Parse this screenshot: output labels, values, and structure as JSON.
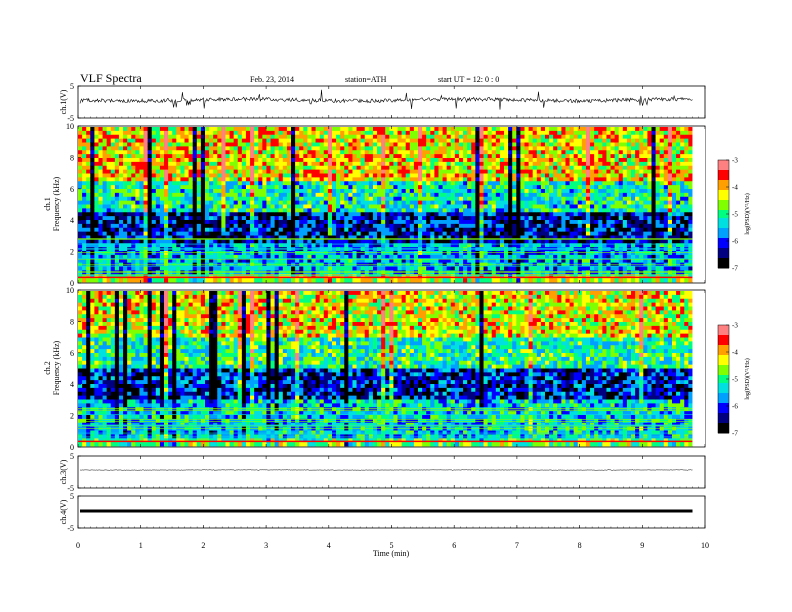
{
  "header": {
    "title": "VLF  Spectra",
    "date": "Feb. 23, 2014",
    "station": "station=ATH",
    "start": "start  UT  =    12: 0   : 0"
  },
  "colors": {
    "spectrum": [
      "#000000",
      "#000080",
      "#0000ff",
      "#00a0ff",
      "#00e0e0",
      "#00ff80",
      "#80ff00",
      "#ffff00",
      "#ffa000",
      "#ff0000",
      "#ff8080",
      "#ffffff"
    ]
  },
  "chart_data": [
    {
      "type": "line",
      "panel": "ch1-waveform",
      "ylabel": "ch.1(V)",
      "ylim": [
        -5,
        5
      ],
      "yticks": [
        "5",
        "-5"
      ],
      "description_values": {
        "baseline_v": 0,
        "spike_range_v": [
          -1.5,
          1.5
        ]
      }
    },
    {
      "type": "heatmap",
      "panel": "ch1-spectrogram",
      "ylabel": "ch.1\nFrequency  (kHz)",
      "ylim": [
        0,
        10
      ],
      "yticks": [
        "0",
        "2",
        "4",
        "6",
        "8",
        "10"
      ],
      "colorbar": {
        "label": "log(PSD)(V²/Hz)",
        "ticks": [
          "-3",
          "-4",
          "-5",
          "-6",
          "-7"
        ],
        "range": [
          -7,
          -3
        ]
      },
      "bands_khz": [
        {
          "from": 0,
          "to": 0.6,
          "level": -4.5
        },
        {
          "from": 0.6,
          "to": 2.5,
          "level": -5.6
        },
        {
          "from": 2.5,
          "to": 4.5,
          "level": -6.3
        },
        {
          "from": 4.5,
          "to": 6.5,
          "level": -5.2
        },
        {
          "from": 6.5,
          "to": 10,
          "level": -4.2
        }
      ]
    },
    {
      "type": "heatmap",
      "panel": "ch2-spectrogram",
      "ylabel": "ch.2\nFrequency  (kHz)",
      "ylim": [
        0,
        10
      ],
      "yticks": [
        "0",
        "2",
        "4",
        "6",
        "8",
        "10"
      ],
      "colorbar": {
        "label": "log(PSD)(V²/Hz)",
        "ticks": [
          "-3",
          "-4",
          "-5",
          "-6",
          "-7"
        ],
        "range": [
          -7,
          -3
        ]
      },
      "bands_khz": [
        {
          "from": 0,
          "to": 0.6,
          "level": -4.8
        },
        {
          "from": 0.6,
          "to": 3,
          "level": -5.4
        },
        {
          "from": 3,
          "to": 5,
          "level": -6.2
        },
        {
          "from": 5,
          "to": 7,
          "level": -5.1
        },
        {
          "from": 7,
          "to": 10,
          "level": -4.3
        }
      ]
    },
    {
      "type": "line",
      "panel": "ch3-waveform",
      "ylabel": "ch.3(V)",
      "ylim": [
        -5,
        5
      ],
      "yticks": [
        "5",
        "-5"
      ]
    },
    {
      "type": "line",
      "panel": "ch4-waveform",
      "ylabel": "ch.4(V)",
      "ylim": [
        -5,
        5
      ],
      "yticks": [
        "5",
        "-5"
      ]
    }
  ],
  "x_axis": {
    "label": "Time  (min)",
    "ticks": [
      "0",
      "1",
      "2",
      "3",
      "4",
      "5",
      "6",
      "7",
      "8",
      "9",
      "10"
    ],
    "xlim": [
      0,
      10
    ],
    "data_end_min": 9.8
  }
}
